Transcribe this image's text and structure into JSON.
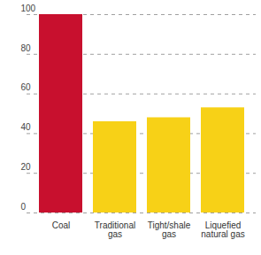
{
  "chart_data": {
    "type": "bar",
    "categories": [
      "Coal",
      "Traditional gas",
      "Tight/shale gas",
      "Liquefied natural gas"
    ],
    "values": [
      100,
      46,
      48,
      53
    ],
    "colors": [
      "#c8102e",
      "#f7d117",
      "#f7d117",
      "#f7d117"
    ],
    "ylim": [
      0,
      100
    ],
    "yticks": [
      0,
      20,
      40,
      60,
      80,
      100
    ],
    "grid": true
  }
}
